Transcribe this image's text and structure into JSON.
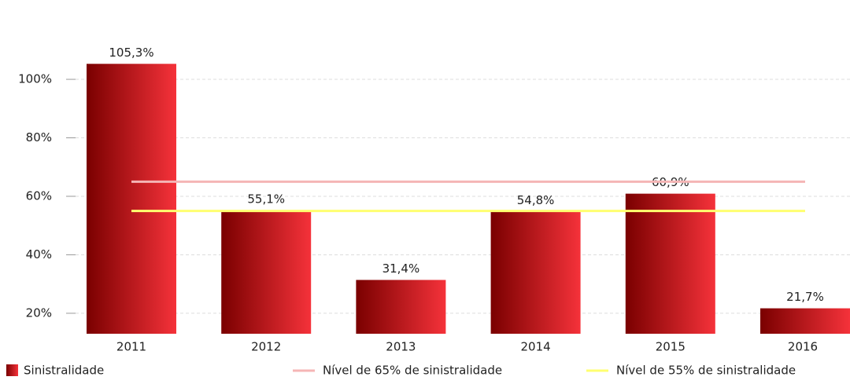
{
  "chart_data": {
    "type": "bar",
    "categories": [
      "2011",
      "2012",
      "2013",
      "2014",
      "2015",
      "2016"
    ],
    "series": [
      {
        "name": "Sinistralidade",
        "color": [
          "#7a0000",
          "#f5323a"
        ],
        "values": [
          105.3,
          55.1,
          31.4,
          54.8,
          60.9,
          21.7
        ],
        "value_labels": [
          "105,3%",
          "55,1%",
          "31,4%",
          "54,8%",
          "60,9%",
          "21,7%"
        ]
      }
    ],
    "reference_lines": [
      {
        "name": "Nível de 65% de sinistralidade",
        "value": 65,
        "color": "#f5b5b5"
      },
      {
        "name": "Nível de 55% de sinistralidade",
        "value": 55,
        "color": "#ffff70"
      }
    ],
    "ylim": [
      13,
      118
    ],
    "yticks": [
      {
        "value": 20,
        "label": "20%"
      },
      {
        "value": 40,
        "label": "40%"
      },
      {
        "value": 60,
        "label": "60%"
      },
      {
        "value": 80,
        "label": "80%"
      },
      {
        "value": 100,
        "label": "100%"
      }
    ],
    "grid": true
  }
}
